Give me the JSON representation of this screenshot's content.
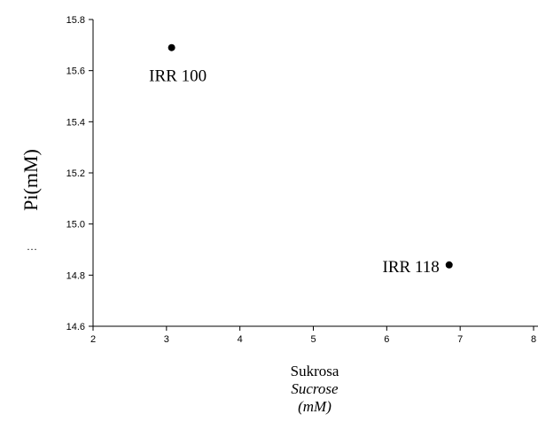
{
  "chart_data": {
    "type": "scatter",
    "title": "",
    "xlabel_lines": [
      "Sukrosa",
      "Sucrose",
      "(mM)"
    ],
    "ylabel": "Pi(mM)",
    "ylabel_prefix": "…",
    "xlim": [
      2,
      8
    ],
    "ylim": [
      14.6,
      15.8
    ],
    "x_ticks": [
      "2",
      "3",
      "4",
      "5",
      "6",
      "7",
      "8"
    ],
    "y_ticks": [
      "14.6",
      "14.8",
      "15.0",
      "15.2",
      "15.4",
      "15.6",
      "15.8"
    ],
    "grid": false,
    "points": [
      {
        "label": "IRR 100",
        "x": 3.07,
        "y": 15.69
      },
      {
        "label": "IRR 118",
        "x": 6.85,
        "y": 14.84
      }
    ]
  }
}
